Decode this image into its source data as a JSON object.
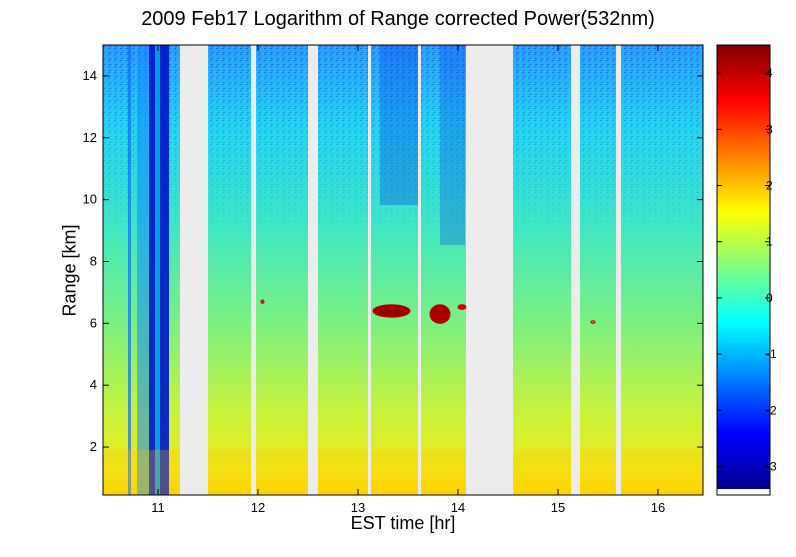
{
  "chart_data": {
    "type": "heatmap",
    "title": "2009 Feb17  Logarithm of Range corrected Power(532nm)",
    "xlabel": "EST time [hr]",
    "ylabel": "Range [km]",
    "xlim": [
      10.45,
      16.45
    ],
    "ylim": [
      0.45,
      15.0
    ],
    "xticks": [
      11,
      12,
      13,
      14,
      15,
      16
    ],
    "yticks": [
      2,
      4,
      6,
      8,
      10,
      12,
      14
    ],
    "colorbar": {
      "range": [
        -3.4,
        4.5
      ],
      "ticks": [
        -3,
        -2,
        -1,
        0,
        1,
        2,
        3,
        4
      ],
      "colormap": [
        "#00008f",
        "#0000ff",
        "#0080ff",
        "#00ffff",
        "#80ff80",
        "#ffff00",
        "#ff8000",
        "#ff0000",
        "#800000"
      ]
    },
    "no_data_periods_hr": [
      [
        11.22,
        11.5
      ],
      [
        11.93,
        11.98
      ],
      [
        12.5,
        12.6
      ],
      [
        13.1,
        13.13
      ],
      [
        13.6,
        13.63
      ],
      [
        14.08,
        14.55
      ],
      [
        15.13,
        15.22
      ],
      [
        15.58,
        15.63
      ]
    ],
    "cloud_layers": [
      {
        "x": 13.15,
        "x2": 13.52,
        "y": 6.2,
        "y2": 6.6,
        "value": 4.3
      },
      {
        "x": 13.72,
        "x2": 13.92,
        "y": 6.0,
        "y2": 6.6,
        "value": 4.2
      },
      {
        "x": 14.0,
        "x2": 14.08,
        "y": 6.45,
        "y2": 6.6,
        "value": 3.8
      },
      {
        "x": 12.03,
        "x2": 12.06,
        "y": 6.65,
        "y2": 6.75,
        "value": 3.2
      },
      {
        "x": 15.33,
        "x2": 15.37,
        "y": 6.0,
        "y2": 6.08,
        "value": 2.6
      }
    ]
  }
}
